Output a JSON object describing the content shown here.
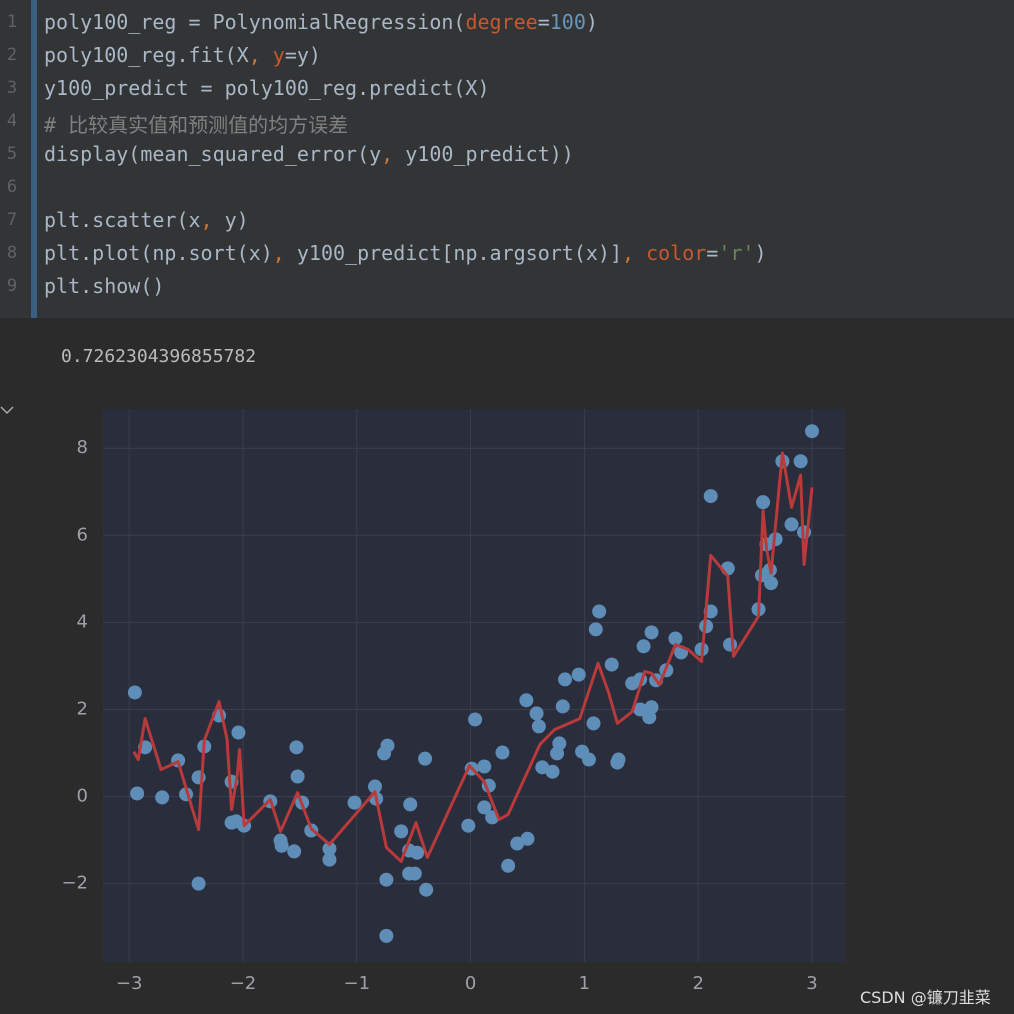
{
  "code": {
    "line_numbers": [
      1,
      2,
      3,
      4,
      5,
      6,
      7,
      8,
      9
    ],
    "lines": [
      [
        {
          "text": "poly100_reg = PolynomialRegression(",
          "color": "#a9b7c6"
        },
        {
          "text": "degree",
          "color": "#c9582e"
        },
        {
          "text": "=",
          "color": "#a9b7c6"
        },
        {
          "text": "100",
          "color": "#6897bb"
        },
        {
          "text": ")",
          "color": "#a9b7c6"
        }
      ],
      [
        {
          "text": "poly100_reg.fit(X",
          "color": "#a9b7c6"
        },
        {
          "text": ", ",
          "color": "#cc7832"
        },
        {
          "text": "y",
          "color": "#c9582e"
        },
        {
          "text": "=y)",
          "color": "#a9b7c6"
        }
      ],
      [
        {
          "text": "y100_predict = poly100_reg.predict(X)",
          "color": "#a9b7c6"
        }
      ],
      [
        {
          "text": "# 比较真实值和预测值的均方误差",
          "color": "#808080"
        }
      ],
      [
        {
          "text": "display(mean_squared_error(y",
          "color": "#a9b7c6"
        },
        {
          "text": ", ",
          "color": "#cc7832"
        },
        {
          "text": "y100_predict))",
          "color": "#a9b7c6"
        }
      ],
      [],
      [
        {
          "text": "plt.scatter(x",
          "color": "#a9b7c6"
        },
        {
          "text": ", ",
          "color": "#cc7832"
        },
        {
          "text": "y)",
          "color": "#a9b7c6"
        }
      ],
      [
        {
          "text": "plt.plot(np.sort(x)",
          "color": "#a9b7c6"
        },
        {
          "text": ", ",
          "color": "#cc7832"
        },
        {
          "text": "y100_predict[np.argsort(x)]",
          "color": "#a9b7c6"
        },
        {
          "text": ", ",
          "color": "#cc7832"
        },
        {
          "text": "color",
          "color": "#c9582e"
        },
        {
          "text": "=",
          "color": "#a9b7c6"
        },
        {
          "text": "'r'",
          "color": "#6a8759"
        },
        {
          "text": ")",
          "color": "#a9b7c6"
        }
      ],
      [
        {
          "text": "plt.show()",
          "color": "#a9b7c6"
        }
      ]
    ]
  },
  "output": "0.7262304396855782",
  "watermark": "CSDN @镰刀韭菜",
  "chart_data": {
    "type": "scatter",
    "xlim": [
      -3.23,
      3.29
    ],
    "ylim": [
      -3.8,
      8.9
    ],
    "xticks": [
      {
        "value": -3,
        "label": "−3"
      },
      {
        "value": -2,
        "label": "−2"
      },
      {
        "value": -1,
        "label": "−1"
      },
      0,
      1,
      2,
      3
    ],
    "yticks": [
      {
        "value": -2,
        "label": "−2"
      },
      0,
      2,
      4,
      6,
      8
    ],
    "grid": true,
    "series": [
      {
        "type": "scatter",
        "color": "#5e8db8",
        "x": [
          -2.95,
          -2.93,
          -2.86,
          -2.71,
          -2.57,
          -2.5,
          -2.39,
          -2.39,
          -2.34,
          -2.21,
          -2.1,
          -2.1,
          -2.06,
          -2.04,
          -1.99,
          -1.76,
          -1.67,
          -1.66,
          -1.55,
          -1.53,
          -1.52,
          -1.48,
          -1.4,
          -1.24,
          -1.24,
          -1.02,
          -0.84,
          -0.83,
          -0.76,
          -0.73,
          -0.74,
          -0.74,
          -0.61,
          -0.54,
          -0.54,
          -0.53,
          -0.49,
          -0.47,
          -0.4,
          -0.39,
          -0.02,
          0.01,
          0.04,
          0.12,
          0.12,
          0.16,
          0.19,
          0.28,
          0.33,
          0.41,
          0.49,
          0.5,
          0.58,
          0.6,
          0.63,
          0.72,
          0.76,
          0.78,
          0.81,
          0.83,
          0.95,
          0.98,
          1.04,
          1.08,
          1.1,
          1.13,
          1.24,
          1.29,
          1.3,
          1.42,
          1.49,
          1.49,
          1.52,
          1.56,
          1.57,
          1.59,
          1.59,
          1.63,
          1.72,
          1.8,
          1.85,
          2.03,
          2.07,
          2.11,
          2.11,
          2.26,
          2.28,
          2.53,
          2.56,
          2.57,
          2.6,
          2.63,
          2.64,
          2.68,
          2.74,
          2.82,
          2.9,
          2.93,
          3.0
        ],
        "values": [
          2.39,
          0.07,
          1.13,
          -0.02,
          0.83,
          0.05,
          0.44,
          -2.0,
          1.15,
          1.86,
          0.34,
          -0.6,
          -0.57,
          1.47,
          -0.67,
          -0.11,
          -1.01,
          -1.13,
          -1.26,
          1.13,
          0.46,
          -0.14,
          -0.78,
          -1.2,
          -1.45,
          -0.14,
          0.23,
          -0.05,
          0.99,
          1.17,
          -1.91,
          -3.2,
          -0.8,
          -1.77,
          -1.24,
          -0.18,
          -1.77,
          -1.29,
          0.87,
          -2.14,
          -0.67,
          0.64,
          1.77,
          0.69,
          -0.25,
          0.25,
          -0.48,
          1.01,
          -1.59,
          -1.08,
          2.21,
          -0.97,
          1.91,
          1.61,
          0.67,
          0.57,
          0.99,
          1.22,
          2.07,
          2.69,
          2.8,
          1.03,
          0.85,
          1.68,
          3.84,
          4.25,
          3.03,
          0.78,
          0.85,
          2.6,
          2.69,
          2.0,
          3.45,
          1.95,
          1.82,
          2.05,
          3.77,
          2.67,
          2.9,
          3.63,
          3.31,
          3.38,
          3.91,
          4.25,
          6.9,
          5.24,
          3.49,
          4.3,
          5.08,
          6.76,
          5.79,
          5.2,
          4.9,
          5.91,
          7.7,
          6.25,
          7.7,
          6.07,
          8.39
        ]
      },
      {
        "type": "line",
        "color": "#b83a3a",
        "x": [
          -2.96,
          -2.92,
          -2.86,
          -2.72,
          -2.57,
          -2.39,
          -2.34,
          -2.21,
          -2.14,
          -2.1,
          -2.05,
          -2.03,
          -1.99,
          -1.76,
          -1.67,
          -1.52,
          -1.4,
          -1.24,
          -0.84,
          -0.74,
          -0.61,
          -0.48,
          -0.38,
          -0.01,
          0.12,
          0.25,
          0.33,
          0.61,
          0.74,
          0.96,
          1.12,
          1.21,
          1.29,
          1.42,
          1.53,
          1.59,
          1.66,
          1.8,
          1.91,
          2.03,
          2.11,
          2.26,
          2.31,
          2.53,
          2.57,
          2.6,
          2.64,
          2.74,
          2.82,
          2.9,
          2.93,
          3.0
        ],
        "values": [
          1.03,
          0.85,
          1.79,
          0.62,
          0.8,
          -0.76,
          1.29,
          2.18,
          1.31,
          -0.3,
          0.51,
          1.08,
          -0.67,
          -0.07,
          -0.8,
          0.09,
          -0.74,
          -1.1,
          0.11,
          -1.17,
          -1.49,
          -0.6,
          -1.4,
          0.71,
          0.34,
          -0.53,
          -0.41,
          1.2,
          1.54,
          1.79,
          3.06,
          2.41,
          1.68,
          1.95,
          2.87,
          2.83,
          2.57,
          3.49,
          3.38,
          3.1,
          5.54,
          5.06,
          3.22,
          4.14,
          6.57,
          5.7,
          5.13,
          7.89,
          6.64,
          7.38,
          5.33,
          7.1
        ]
      }
    ]
  }
}
